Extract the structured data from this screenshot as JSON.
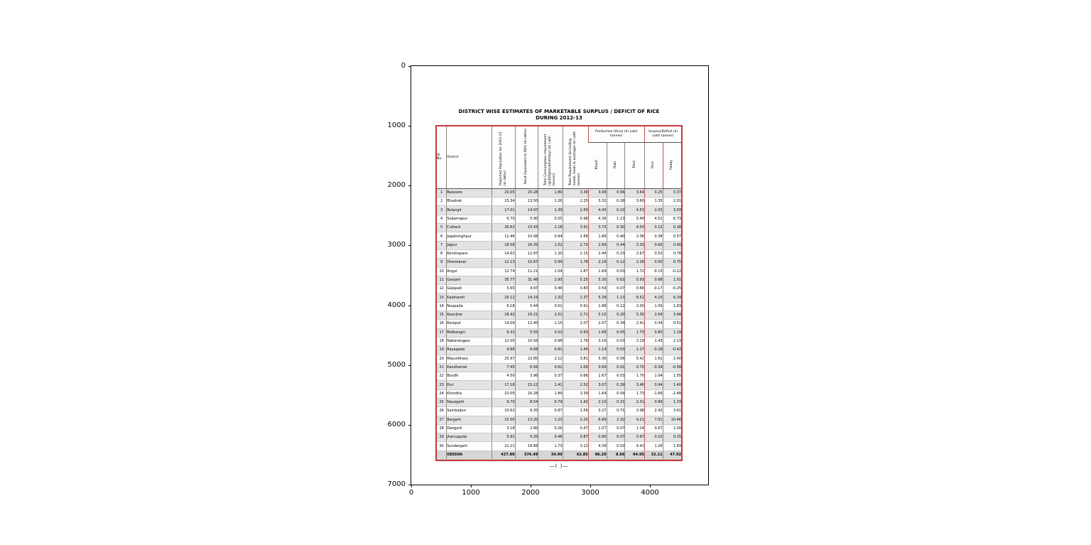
{
  "axes": {
    "y_ticks": [
      "0",
      "1000",
      "2000",
      "3000",
      "4000",
      "5000",
      "6000",
      "7000"
    ],
    "x_ticks": [
      "0",
      "1000",
      "2000",
      "3000",
      "4000"
    ]
  },
  "document": {
    "title_line1": "DISTRICT WISE ESTIMATES OF MARKETABLE SURPLUS / DEFICIT OF RICE",
    "title_line2": "DURING 2012-13",
    "footer_mark": "—(  )—"
  },
  "table": {
    "headers": {
      "sl": "Sl. No.",
      "district": "District",
      "cols": [
        "Projected Population for 2012-13 (in lakhs)",
        "Adult Equivalent to 88% (in lakhs)",
        "Total Consumption requirement (@400gms/adult/day) (in Lakh tonnes)",
        "Total Requirement (including seeds, feeds & wastage) (in Lakh tonnes)"
      ],
      "production_group": "Production (Rice) (In Lakh tonnes)",
      "production_sub": [
        "Kharif",
        "Rabi",
        "Total"
      ],
      "surplus_group": "Surplus/Deficit (In Lakh tonnes)",
      "surplus_sub": [
        "Rice",
        "Paddy"
      ]
    },
    "rows": [
      [
        "1",
        "Balasore",
        "23.05",
        "20.28",
        "1.89",
        "3.39",
        "3.08",
        "0.56",
        "3.64",
        "0.25",
        "0.37"
      ],
      [
        "2",
        "Bhadrak",
        "15.34",
        "13.50",
        "1.26",
        "2.25",
        "3.32",
        "0.28",
        "3.60",
        "1.35",
        "2.01"
      ],
      [
        "3",
        "Bolangir",
        "17.01",
        "14.97",
        "1.39",
        "2.50",
        "4.43",
        "0.10",
        "4.53",
        "2.03",
        "3.03"
      ],
      [
        "4",
        "Subarnapur",
        "6.70",
        "5.90",
        "0.55",
        "0.98",
        "4.36",
        "1.13",
        "5.49",
        "4.51",
        "6.73"
      ],
      [
        "5",
        "Cuttack",
        "26.62",
        "23.43",
        "2.18",
        "3.91",
        "3.73",
        "0.30",
        "4.03",
        "0.12",
        "0.18"
      ],
      [
        "6",
        "Jagatsinghpur",
        "11.46",
        "10.08",
        "0.94",
        "1.68",
        "1.66",
        "0.40",
        "2.06",
        "0.38",
        "0.57"
      ],
      [
        "7",
        "Jajpur",
        "18.58",
        "16.35",
        "1.52",
        "2.73",
        "2.89",
        "0.44",
        "3.33",
        "0.60",
        "0.90"
      ],
      [
        "8",
        "Kendrapara",
        "14.62",
        "12.87",
        "1.20",
        "2.15",
        "2.44",
        "0.23",
        "2.67",
        "0.52",
        "0.78"
      ],
      [
        "9",
        "Dhenkanal",
        "12.13",
        "10.67",
        "0.99",
        "1.78",
        "2.16",
        "0.12",
        "2.28",
        "0.50",
        "0.75"
      ],
      [
        "10",
        "Angul",
        "12.74",
        "11.21",
        "1.04",
        "1.87",
        "1.69",
        "0.03",
        "1.72",
        "-0.15",
        "-0.22"
      ],
      [
        "11",
        "Ganjam",
        "35.77",
        "31.48",
        "2.93",
        "5.25",
        "5.30",
        "0.63",
        "5.93",
        "0.68",
        "1.01"
      ],
      [
        "12",
        "Gajapati",
        "5.65",
        "4.97",
        "0.46",
        "0.83",
        "0.59",
        "0.07",
        "0.66",
        "-0.17",
        "-0.25"
      ],
      [
        "13",
        "Kalahandi",
        "16.12",
        "14.19",
        "1.32",
        "2.37",
        "5.39",
        "1.13",
        "6.52",
        "4.15",
        "6.19"
      ],
      [
        "14",
        "Nuapada",
        "6.18",
        "5.44",
        "0.51",
        "0.91",
        "1.88",
        "0.12",
        "2.00",
        "1.09",
        "1.63"
      ],
      [
        "15",
        "Keonjhar",
        "18.42",
        "16.21",
        "1.51",
        "2.71",
        "5.15",
        "0.20",
        "5.35",
        "2.64",
        "3.94"
      ],
      [
        "16",
        "Koraput",
        "14.09",
        "12.40",
        "1.15",
        "2.07",
        "2.07",
        "0.34",
        "2.41",
        "0.34",
        "0.51"
      ],
      [
        "17",
        "Malkangiri",
        "6.31",
        "5.55",
        "0.52",
        "0.93",
        "1.68",
        "0.05",
        "1.73",
        "0.80",
        "1.19"
      ],
      [
        "18",
        "Nabarangpur",
        "12.00",
        "10.56",
        "0.98",
        "1.76",
        "3.16",
        "0.03",
        "3.19",
        "1.43",
        "2.13"
      ],
      [
        "19",
        "Rayagada",
        "9.86",
        "8.68",
        "0.81",
        "1.45",
        "1.14",
        "0.03",
        "1.17",
        "-0.28",
        "-0.42"
      ],
      [
        "20",
        "Mayurbhanj",
        "25.97",
        "22.85",
        "2.12",
        "3.81",
        "5.36",
        "0.06",
        "5.42",
        "1.61",
        "2.40"
      ],
      [
        "21",
        "Kandhamal",
        "7.45",
        "6.56",
        "0.61",
        "1.09",
        "0.69",
        "0.01",
        "0.70",
        "-0.39",
        "-0.58"
      ],
      [
        "22",
        "Boudh",
        "4.50",
        "3.96",
        "0.37",
        "0.66",
        "1.67",
        "0.03",
        "1.70",
        "1.04",
        "1.55"
      ],
      [
        "23",
        "Puri",
        "17.18",
        "15.12",
        "1.41",
        "2.52",
        "3.07",
        "0.39",
        "3.46",
        "0.94",
        "1.40"
      ],
      [
        "24",
        "Khordha",
        "23.05",
        "20.28",
        "1.89",
        "3.39",
        "1.64",
        "0.09",
        "1.73",
        "-1.66",
        "-2.48"
      ],
      [
        "25",
        "Nayagarh",
        "9.70",
        "8.54",
        "0.79",
        "1.42",
        "2.10",
        "0.21",
        "2.31",
        "0.89",
        "1.33"
      ],
      [
        "26",
        "Sambalpur",
        "10.62",
        "9.35",
        "0.87",
        "1.56",
        "3.27",
        "0.71",
        "3.98",
        "2.42",
        "3.61"
      ],
      [
        "27",
        "Bargarh",
        "15.00",
        "13.20",
        "1.23",
        "2.20",
        "6.89",
        "2.32",
        "9.21",
        "7.01",
        "10.46"
      ],
      [
        "28",
        "Deogarh",
        "3.18",
        "2.80",
        "0.26",
        "0.47",
        "1.07",
        "0.07",
        "1.14",
        "0.67",
        "1.00"
      ],
      [
        "29",
        "Jharsuguda",
        "5.91",
        "5.20",
        "0.48",
        "0.87",
        "0.90",
        "0.07",
        "0.97",
        "0.10",
        "0.15"
      ],
      [
        "30",
        "Sundergarh",
        "21.21",
        "18.66",
        "1.73",
        "3.12",
        "4.39",
        "0.02",
        "4.41",
        "1.29",
        "1.93"
      ]
    ],
    "total_row": [
      "",
      "ODISHA",
      "427.80",
      "376.49",
      "34.99",
      "62.85",
      "86.29",
      "8.66",
      "94.95",
      "32.11",
      "47.92"
    ]
  }
}
